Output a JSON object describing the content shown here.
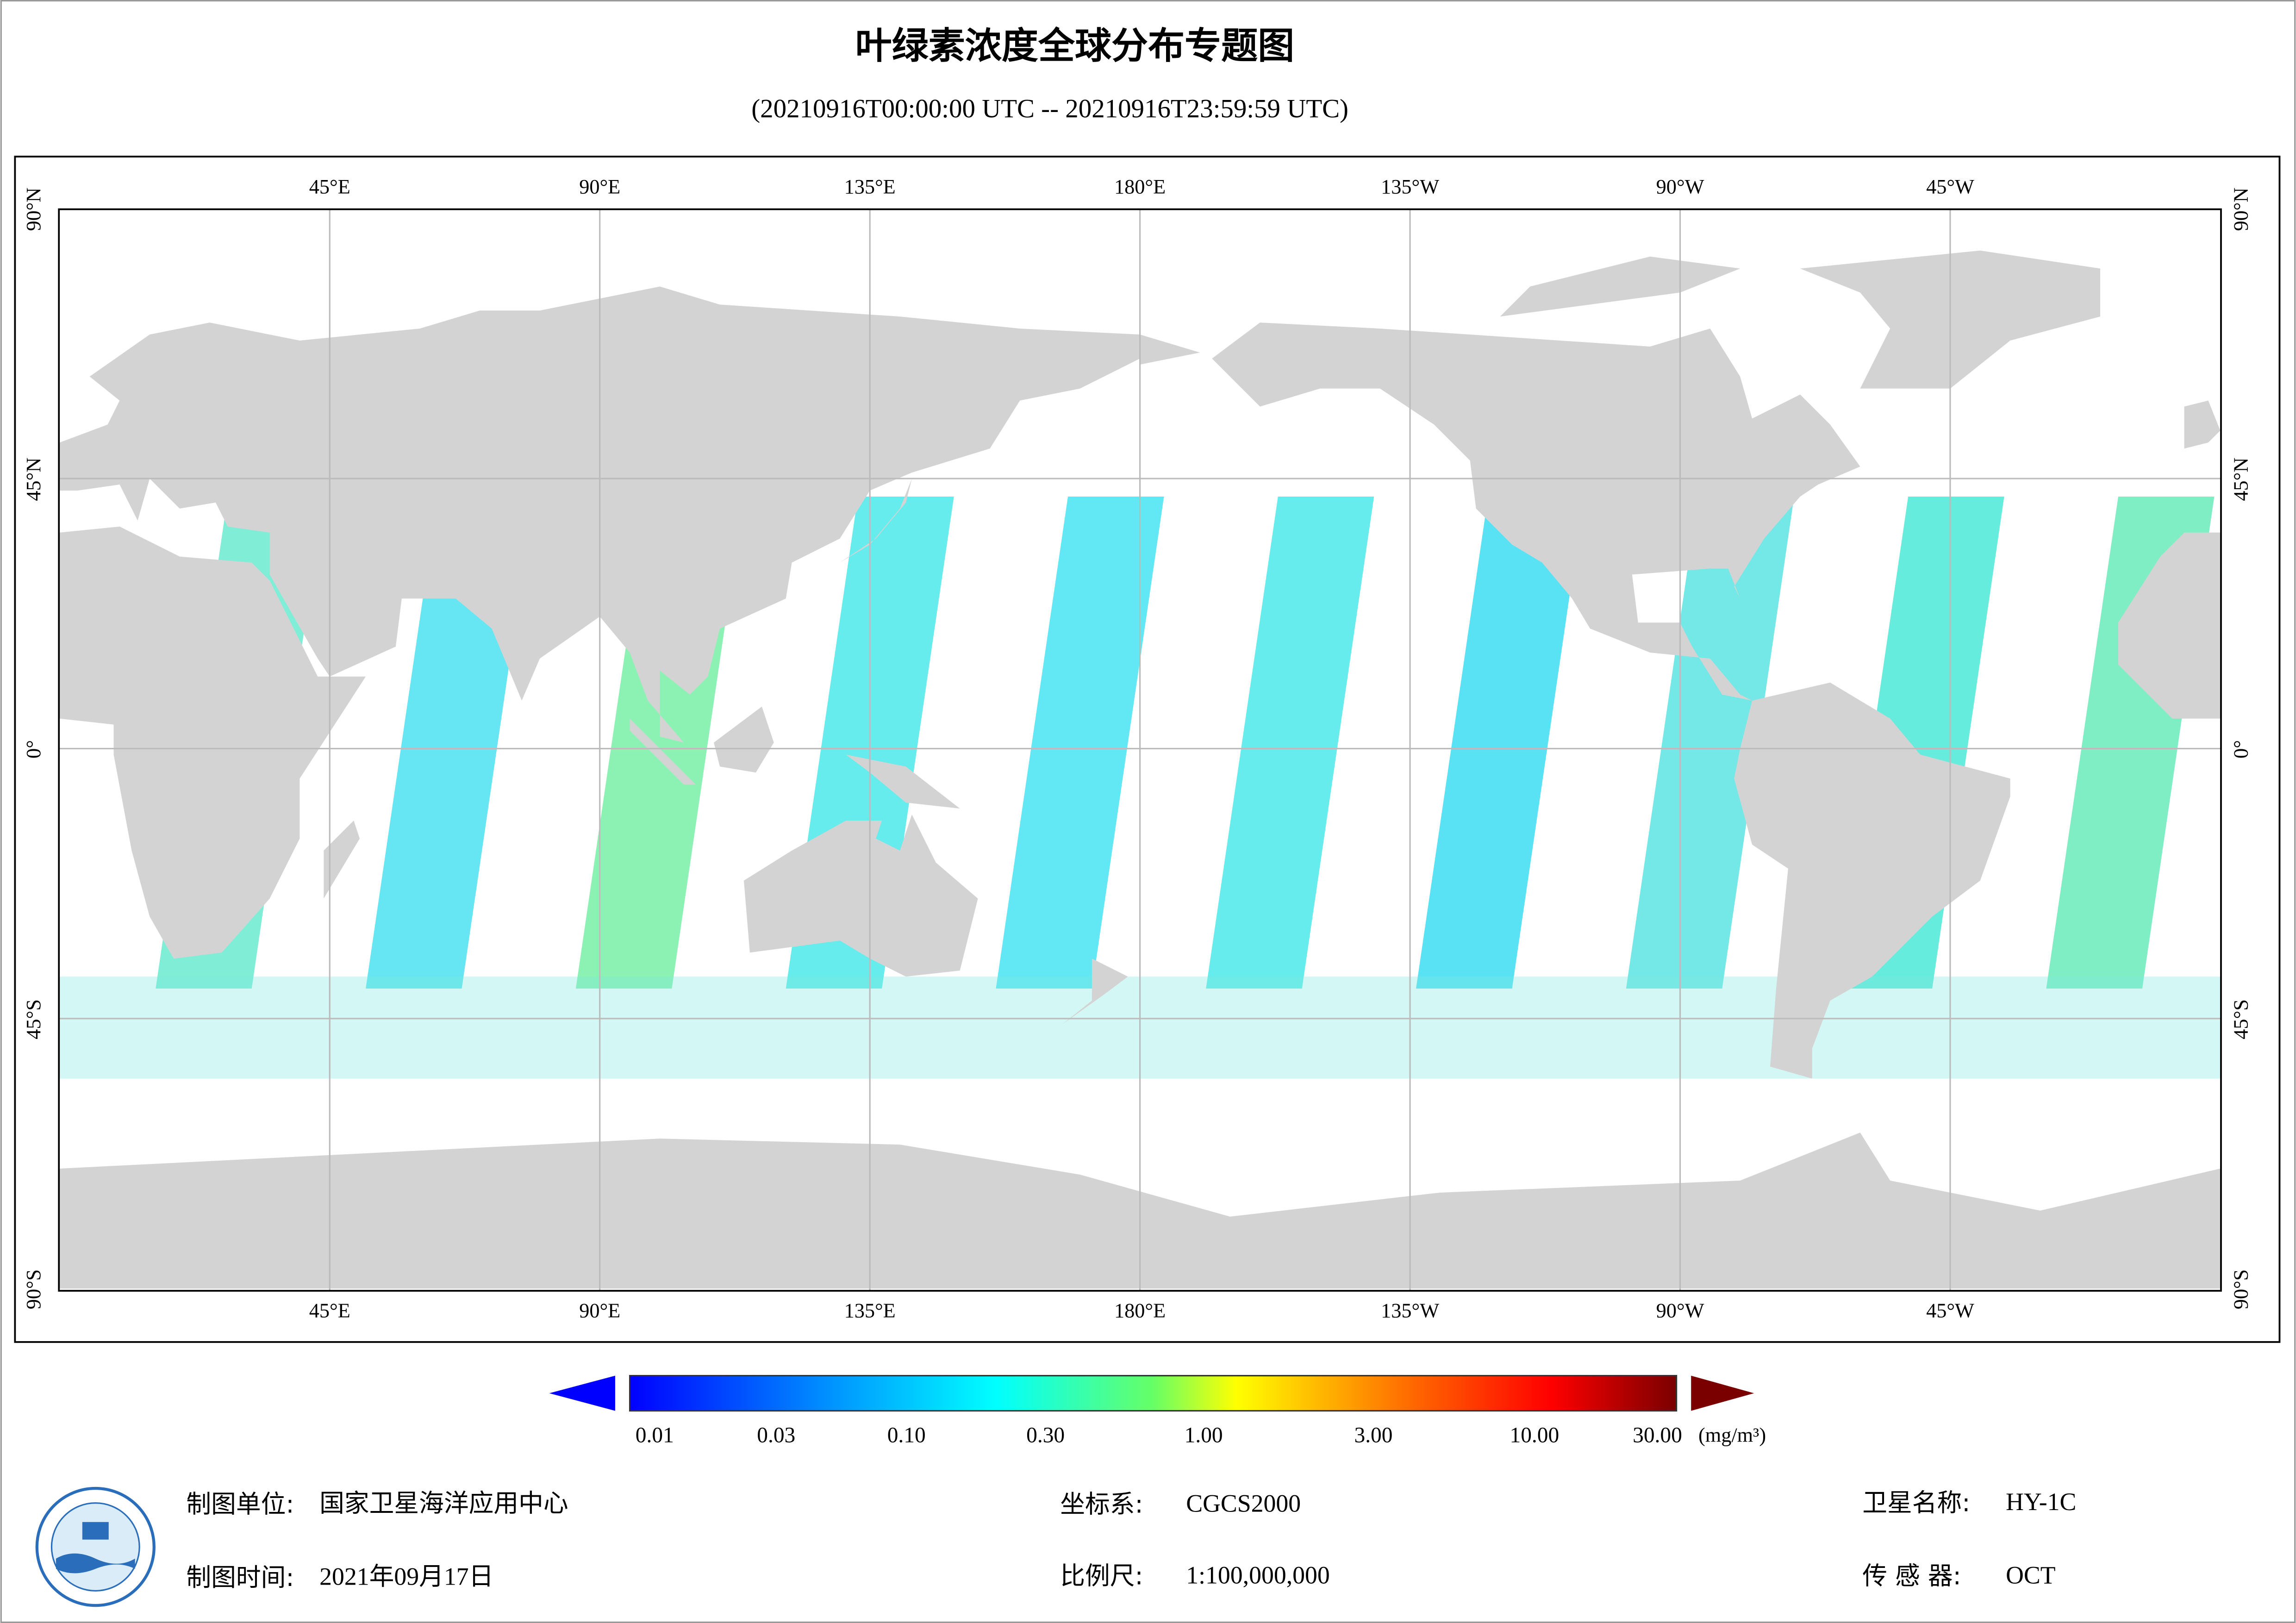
{
  "header": {
    "title": "叶绿素浓度全球分布专题图",
    "subtitle": "(20210916T00:00:00 UTC -- 20210916T23:59:59 UTC)"
  },
  "map": {
    "longitude_labels": [
      "45°E",
      "90°E",
      "135°E",
      "180°E",
      "135°W",
      "90°W",
      "45°W"
    ],
    "latitude_labels": [
      "90°N",
      "45°N",
      "0°",
      "45°S",
      "90°S"
    ]
  },
  "legend": {
    "labels": [
      "0.01",
      "0.03",
      "0.10",
      "0.30",
      "1.00",
      "3.00",
      "10.00",
      "30.00"
    ],
    "unit": "(mg/m³)"
  },
  "footer": {
    "producer": {
      "label": "制图单位:",
      "value": "国家卫星海洋应用中心"
    },
    "date": {
      "label": "制图时间:",
      "value": "2021年09月17日"
    },
    "crs": {
      "label": "坐标系:",
      "value": "CGCS2000"
    },
    "scale": {
      "label": "比例尺:",
      "value": "1:100,000,000"
    },
    "satellite": {
      "label": "卫星名称:",
      "value": "HY-1C"
    },
    "sensor": {
      "label": "传 感 器:",
      "value": "OCT"
    }
  }
}
